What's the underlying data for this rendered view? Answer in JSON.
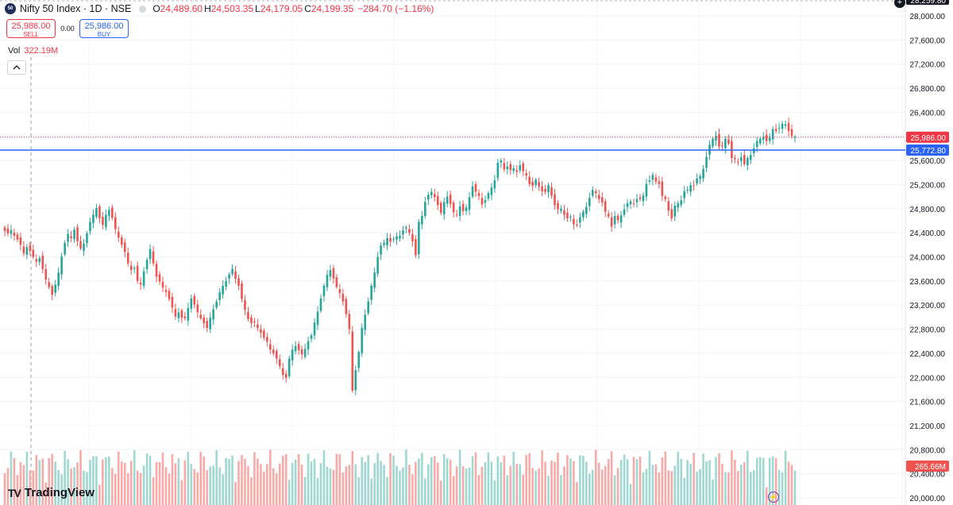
{
  "header": {
    "symbol_badge": "50",
    "title": "Nifty 50 Index · 1D · NSE",
    "ohlc": {
      "o_label": "O",
      "o": "24,489.60",
      "h_label": "H",
      "h": "24,503.35",
      "l_label": "L",
      "l": "24,179.05",
      "c_label": "C",
      "c": "24,199.35",
      "change": "−284.70 (−1.16%)"
    }
  },
  "trade": {
    "sell_price": "25,986.00",
    "sell_label": "SELL",
    "spread": "0.00",
    "buy_price": "25,986.00",
    "buy_label": "BUY"
  },
  "volume": {
    "label": "Vol",
    "value": "322.19M"
  },
  "price_axis": {
    "ticks": [
      "28,000.00",
      "27,600.00",
      "27,200.00",
      "26,800.00",
      "26,400.00",
      "26,000.00",
      "25,600.00",
      "25,200.00",
      "24,800.00",
      "24,400.00",
      "24,000.00",
      "23,600.00",
      "23,200.00",
      "22,800.00",
      "22,400.00",
      "22,000.00",
      "21,600.00",
      "21,200.00",
      "20,800.00",
      "20,400.00",
      "20,000.00"
    ],
    "top_label": "28,259.80",
    "last_price_label": "25,986.00",
    "hline_label": "25,772.80",
    "volume_label": "265.66M"
  },
  "logo": {
    "text": "TradingView"
  },
  "colors": {
    "up": "#26a69a",
    "down": "#ef5350",
    "up_vol": "#9fd8d1",
    "down_vol": "#f7aaa8",
    "hline": "#2962ff",
    "last_price": "#f23645"
  },
  "chart_data": {
    "type": "candlestick",
    "symbol": "Nifty 50 Index",
    "interval": "1D",
    "ylim": [
      20000,
      28100
    ],
    "last_price": 25986.0,
    "horizontal_line": 25772.8,
    "closes": [
      24430,
      24390,
      24440,
      24350,
      24290,
      24200,
      24060,
      24160,
      24100,
      24000,
      23920,
      23980,
      23800,
      23620,
      23500,
      23370,
      23540,
      23740,
      24010,
      24230,
      24380,
      24310,
      24450,
      24260,
      24140,
      24220,
      24390,
      24580,
      24700,
      24810,
      24640,
      24530,
      24700,
      24780,
      24650,
      24460,
      24320,
      24200,
      24080,
      23890,
      23780,
      23820,
      23600,
      23540,
      23760,
      23950,
      24130,
      23890,
      23670,
      23590,
      23490,
      23420,
      23300,
      23160,
      23010,
      23080,
      22990,
      22980,
      23150,
      23310,
      23210,
      23080,
      22980,
      22900,
      22820,
      22990,
      23130,
      23260,
      23410,
      23520,
      23600,
      23710,
      23800,
      23640,
      23520,
      23300,
      23120,
      22970,
      22900,
      22910,
      22820,
      22740,
      22660,
      22590,
      22460,
      22400,
      22310,
      22190,
      22040,
      21990,
      22310,
      22460,
      22520,
      22450,
      22380,
      22470,
      22600,
      22700,
      22910,
      23090,
      23310,
      23520,
      23700,
      23780,
      23640,
      23500,
      23400,
      23260,
      23050,
      22800,
      21780,
      22120,
      22420,
      22820,
      23040,
      23260,
      23520,
      23740,
      24000,
      24190,
      24230,
      24310,
      24250,
      24300,
      24340,
      24350,
      24440,
      24490,
      24400,
      24260,
      24030,
      24580,
      24680,
      24910,
      25030,
      25080,
      24990,
      24860,
      24730,
      24910,
      25000,
      24880,
      24740,
      24690,
      24840,
      24760,
      24820,
      24990,
      25170,
      25080,
      25010,
      24870,
      24940,
      25060,
      25150,
      25270,
      25560,
      25600,
      25450,
      25500,
      25440,
      25470,
      25410,
      25520,
      25420,
      25350,
      25210,
      25180,
      25280,
      25170,
      25090,
      25080,
      25190,
      25020,
      24860,
      24790,
      24800,
      24700,
      24640,
      24670,
      24540,
      24530,
      24660,
      24750,
      24830,
      24980,
      25110,
      25060,
      24960,
      24900,
      24750,
      24670,
      24500,
      24680,
      24610,
      24690,
      24790,
      24890,
      24920,
      24880,
      24960,
      24960,
      25020,
      25210,
      25270,
      25360,
      25250,
      25210,
      25010,
      24960,
      24770,
      24640,
      24850,
      24890,
      24940,
      25090,
      25120,
      25190,
      25180,
      25300,
      25340,
      25460,
      25660,
      25860,
      25960,
      26010,
      25830,
      25840,
      25960,
      25880,
      25640,
      25620,
      25580,
      25650,
      25540,
      25640,
      25690,
      25800,
      25920,
      25960,
      25990,
      25920,
      25990,
      26120,
      26090,
      26140,
      26210,
      26200,
      26090,
      26010,
      25990
    ]
  }
}
